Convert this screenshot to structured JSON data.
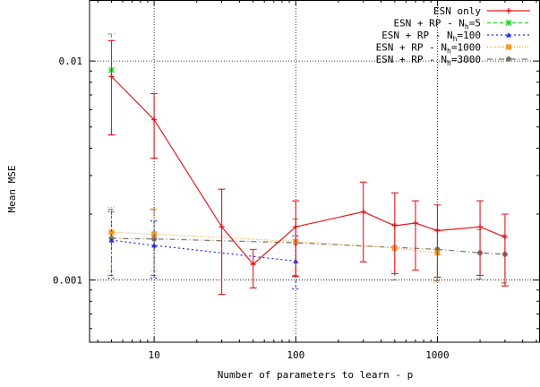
{
  "chart_data": {
    "type": "line",
    "title": "",
    "xlabel": "Number of parameters to learn - p",
    "ylabel": "Mean MSE",
    "xscale": "log",
    "yscale": "log",
    "xlim": [
      3.5,
      5300
    ],
    "ylim": [
      0.00052,
      0.019
    ],
    "grid": true,
    "legend_position": "top-right",
    "xticks": [
      {
        "value": 10,
        "label": "10"
      },
      {
        "value": 100,
        "label": "100"
      },
      {
        "value": 1000,
        "label": "1000"
      }
    ],
    "yticks": [
      {
        "value": 0.001,
        "label": "0.001"
      },
      {
        "value": 0.01,
        "label": "0.01"
      }
    ],
    "series": [
      {
        "name": "ESN only",
        "color": "#e8161c",
        "marker": "plus",
        "dash": "",
        "x": [
          5,
          10,
          30,
          50,
          100,
          300,
          500,
          700,
          1000,
          2000,
          3000
        ],
        "y": [
          0.0085,
          0.0054,
          0.00175,
          0.00118,
          0.00175,
          0.00205,
          0.00177,
          0.00182,
          0.00168,
          0.00175,
          0.00157
        ],
        "err_low": [
          0.0046,
          0.0036,
          0.00086,
          0.00092,
          0.00104,
          0.00121,
          0.00107,
          0.00111,
          0.00103,
          0.00105,
          0.00094
        ],
        "err_high": [
          0.0124,
          0.0071,
          0.0026,
          0.00138,
          0.0023,
          0.0028,
          0.0025,
          0.0023,
          0.0022,
          0.0023,
          0.002
        ]
      },
      {
        "name": "ESN + RP - N_h=5",
        "color": "#27d327",
        "marker": "star",
        "dash": "4,3",
        "x": [
          5
        ],
        "y": [
          0.0091
        ],
        "err_low": [
          0.0046
        ],
        "err_high": [
          0.0133
        ]
      },
      {
        "name": "ESN + RP - N_h=100",
        "color": "#1a2fd6",
        "marker": "triangle",
        "dash": "2,3",
        "x": [
          5,
          10,
          100
        ],
        "y": [
          0.00152,
          0.00144,
          0.00122
        ],
        "err_low": [
          0.00102,
          0.00102,
          0.00091
        ],
        "err_high": [
          0.00205,
          0.00186,
          0.00159
        ]
      },
      {
        "name": "ESN + RP - N_h=1000",
        "color": "#f39a2a",
        "marker": "square",
        "dash": "1,2",
        "x": [
          5,
          10,
          100,
          500,
          1000
        ],
        "y": [
          0.00165,
          0.00162,
          0.0015,
          0.0014,
          0.00133
        ],
        "err_low": [
          0.0011,
          0.0011,
          0.0011,
          0.0011,
          0.00097
        ],
        "err_high": [
          0.00215,
          0.00213,
          0.0019,
          0.0018,
          0.0017
        ]
      },
      {
        "name": "ESN + RP - N_h=3000",
        "color": "#7b7366",
        "marker": "circle",
        "dash": "6,3,1,3",
        "x": [
          5,
          10,
          100,
          500,
          1000,
          2000,
          3000
        ],
        "y": [
          0.00155,
          0.00154,
          0.00148,
          0.00141,
          0.00138,
          0.00133,
          0.00131
        ],
        "err_low": [
          0.00105,
          0.00105,
          0.00105,
          0.001,
          0.00099,
          0.00101,
          0.00097
        ],
        "err_high": [
          0.0021,
          0.0021,
          0.0019,
          0.0018,
          0.0017,
          0.0017,
          0.0016
        ]
      }
    ]
  }
}
